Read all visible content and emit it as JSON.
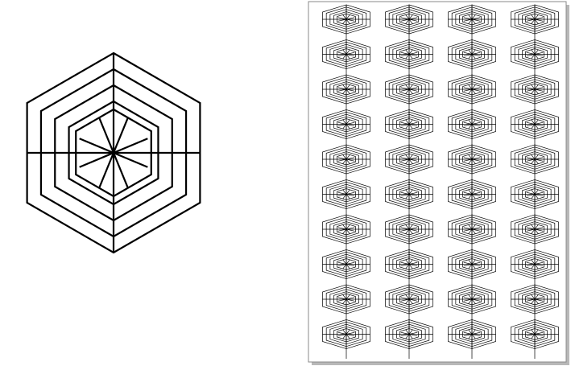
{
  "figure": {
    "main_motif": {
      "shape": "concentric hexagons with radial spokes",
      "hexagon_rings": 5,
      "spokes": 8,
      "stroke_color": "#000000"
    },
    "tiled_sheet": {
      "columns": 4,
      "rows": 10,
      "page_fill": "#ffffff",
      "page_border": "#8a8a8a",
      "page_shadow": "#b8b8b8",
      "stroke_color": "#000000"
    }
  }
}
